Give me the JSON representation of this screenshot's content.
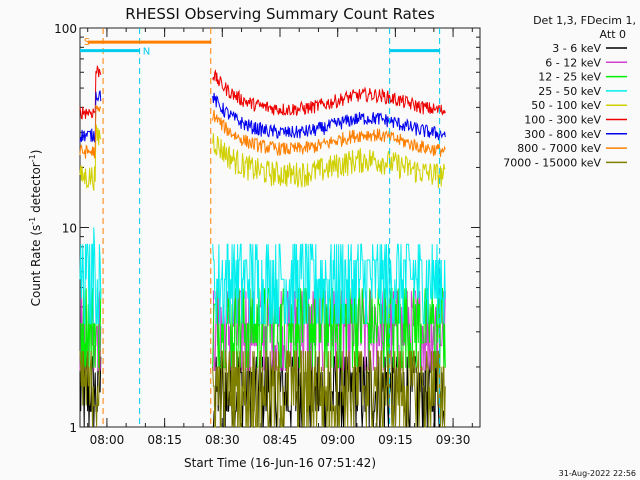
{
  "chart_data": {
    "type": "line",
    "title": "RHESSI Observing Summary Count Rates",
    "xlabel": "Start Time (16-Jun-16 07:51:42)",
    "ylabel_main": "Count Rate (s",
    "ylabel_sup1": "-1",
    "ylabel_mid": " detector",
    "ylabel_sup2": "-1",
    "ylabel_end": ")",
    "yscale": "log",
    "ylim": [
      1,
      100
    ],
    "xlim_minutes": [
      -7,
      97
    ],
    "x_ticks": [
      {
        "m": 0,
        "label": "08:00"
      },
      {
        "m": 15,
        "label": "08:15"
      },
      {
        "m": 30,
        "label": "08:30"
      },
      {
        "m": 45,
        "label": "08:45"
      },
      {
        "m": 60,
        "label": "09:00"
      },
      {
        "m": 75,
        "label": "09:15"
      },
      {
        "m": 90,
        "label": "09:30"
      }
    ],
    "y_ticks": [
      {
        "v": 1,
        "label": "1"
      },
      {
        "v": 10,
        "label": "10"
      },
      {
        "v": 100,
        "label": "100"
      }
    ],
    "legend_header": [
      "Det 1,3, FDecim 1,",
      "Att 0"
    ],
    "series": [
      {
        "name": "3 - 6 keV",
        "color": "#000000",
        "base": 1.5,
        "noise": 0.5
      },
      {
        "name": "6 - 12 keV",
        "color": "#d040d0",
        "base": 3.2,
        "noise": 0.3
      },
      {
        "name": "12 - 25 keV",
        "color": "#00ee00",
        "base": 3.3,
        "noise": 0.25
      },
      {
        "name": "25 - 50 keV",
        "color": "#00eeee",
        "base": 5.5,
        "noise": 0.4
      },
      {
        "name": "50 - 100 keV",
        "color": "#d0d000",
        "base": 18,
        "noise": 0.15
      },
      {
        "name": "100 - 300 keV",
        "color": "#ee0000",
        "base": 38,
        "noise": 0.08
      },
      {
        "name": "300 - 800 keV",
        "color": "#0000ee",
        "base": 29,
        "noise": 0.08
      },
      {
        "name": "800 - 7000 keV",
        "color": "#ff8000",
        "base": 24,
        "noise": 0.08
      },
      {
        "name": "7000 - 15000 keV",
        "color": "#808000",
        "base": 1.6,
        "noise": 0.6
      }
    ],
    "data_segments_minutes": [
      [
        -7,
        -1.5
      ],
      [
        27.5,
        88
      ]
    ],
    "saa_label": "S",
    "night_label": "N",
    "orange_bar_minutes": [
      -5,
      27
    ],
    "orange_bar_value": 85,
    "cyan_bars": [
      [
        -7,
        8.5
      ],
      [
        73.5,
        86.5
      ]
    ],
    "cyan_bar_value": 77,
    "orange_dashed_minutes": [
      -1,
      27
    ],
    "cyan_dashed_minutes": [
      8.5,
      73.5,
      86.5
    ]
  },
  "footer_date": "31-Aug-2022 22:56"
}
